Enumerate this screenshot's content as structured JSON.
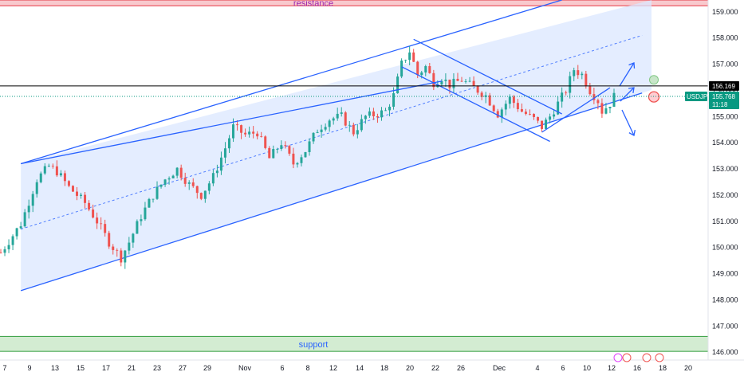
{
  "chart_data": {
    "type": "candlestick",
    "symbol": "USDJPY",
    "current_price": "155.768",
    "countdown": "11:18",
    "horizontal_level": "156.169",
    "y_ticks": [
      "159.000",
      "158.000",
      "157.000",
      "156.000",
      "155.000",
      "154.000",
      "153.000",
      "152.000",
      "151.000",
      "150.000",
      "149.000",
      "148.000",
      "147.000",
      "146.000"
    ],
    "x_ticks": [
      "7",
      "9",
      "13",
      "15",
      "17",
      "21",
      "23",
      "27",
      "29",
      "Nov",
      "6",
      "8",
      "12",
      "14",
      "18",
      "20",
      "22",
      "26",
      "Dec",
      "4",
      "6",
      "10",
      "12",
      "16",
      "18",
      "20"
    ],
    "ylim": [
      145.7,
      159.45
    ],
    "zones": [
      {
        "name": "resistance",
        "label": "resistance",
        "low": 159.23,
        "high": 159.45
      },
      {
        "name": "support",
        "label": "support",
        "low": 146.03,
        "high": 146.6
      }
    ],
    "price_path": [
      [
        0,
        149.8
      ],
      [
        5,
        150.9
      ],
      [
        9,
        152.6
      ],
      [
        12,
        153.1
      ],
      [
        14,
        152.9
      ],
      [
        17,
        152.3
      ],
      [
        21,
        151.7
      ],
      [
        24,
        151.0
      ],
      [
        27,
        150.2
      ],
      [
        30,
        149.6
      ],
      [
        32,
        150.2
      ],
      [
        35,
        151.2
      ],
      [
        38,
        152.0
      ],
      [
        41,
        152.6
      ],
      [
        44,
        153.0
      ],
      [
        47,
        152.4
      ],
      [
        50,
        152.0
      ],
      [
        53,
        152.7
      ],
      [
        56,
        153.8
      ],
      [
        58,
        154.6
      ],
      [
        61,
        154.3
      ],
      [
        64,
        154.4
      ],
      [
        67,
        153.4
      ],
      [
        70,
        154.0
      ],
      [
        73,
        153.2
      ],
      [
        76,
        153.7
      ],
      [
        79,
        154.5
      ],
      [
        82,
        154.9
      ],
      [
        85,
        155.0
      ],
      [
        88,
        154.4
      ],
      [
        91,
        155.0
      ],
      [
        94,
        155.1
      ],
      [
        96,
        155.2
      ],
      [
        98,
        155.8
      ],
      [
        100,
        157.0
      ],
      [
        102,
        157.5
      ],
      [
        104,
        156.6
      ],
      [
        106,
        156.9
      ],
      [
        108,
        156.3
      ],
      [
        110,
        156.5
      ],
      [
        112,
        156.2
      ],
      [
        115,
        156.4
      ],
      [
        118,
        156.1
      ],
      [
        121,
        155.8
      ],
      [
        124,
        155.1
      ],
      [
        127,
        155.7
      ],
      [
        130,
        155.2
      ],
      [
        133,
        154.9
      ],
      [
        135,
        154.6
      ],
      [
        137,
        155.0
      ],
      [
        139,
        155.5
      ],
      [
        141,
        156.0
      ],
      [
        143,
        156.8
      ],
      [
        145,
        156.6
      ],
      [
        147,
        156.0
      ],
      [
        149,
        155.6
      ],
      [
        150,
        155.2
      ],
      [
        152,
        155.5
      ],
      [
        153,
        155.77
      ]
    ],
    "annotations": {
      "ascending_channel": {
        "upper": [
          [
            5,
            153.2
          ],
          [
            140,
            159.45
          ]
        ],
        "lower": [
          [
            5,
            148.35
          ],
          [
            160,
            155.9
          ]
        ],
        "mid": [
          [
            5,
            150.7
          ],
          [
            160,
            158.1
          ]
        ]
      },
      "rising_line": [
        [
          5,
          153.2
        ],
        [
          110,
          156.35
        ]
      ],
      "falling_channel": [
        [
          103,
          157.95
        ],
        [
          140,
          155.1
        ]
      ],
      "falling_channel_lower": [
        [
          100,
          156.9
        ],
        [
          137,
          154.05
        ]
      ],
      "rising_wedge_line": [
        [
          135,
          154.4
        ],
        [
          152,
          156.1
        ]
      ],
      "arrows": [
        "up",
        "up",
        "down"
      ],
      "markers": [
        {
          "color": "#81c784",
          "price": 156.4
        },
        {
          "color": "#ef5350",
          "price": 155.75
        }
      ]
    }
  },
  "colors": {
    "up": "#26a69a",
    "down": "#ef5350",
    "channel": "#2962ff",
    "channel_fill": "#dbe7ff",
    "resistance_fill": "#f8c9cd",
    "resistance_line": "#e53945",
    "resistance_text": "#9c27b0",
    "support_fill": "#d3ecd2",
    "support_line": "#2e9b3a",
    "support_text": "#2962ff",
    "price_tag": "#089981",
    "level_tag": "#000000"
  }
}
